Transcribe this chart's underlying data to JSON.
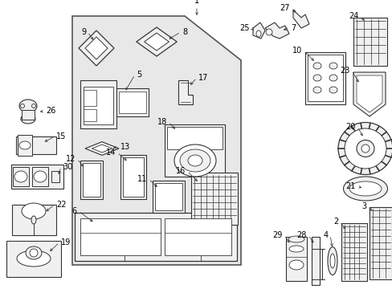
{
  "bg": "#ffffff",
  "lc": "#333333",
  "tc": "#000000",
  "panel_fc": "#e8e8e8",
  "part_fc": "#f0f0f0",
  "part_ec": "#333333"
}
